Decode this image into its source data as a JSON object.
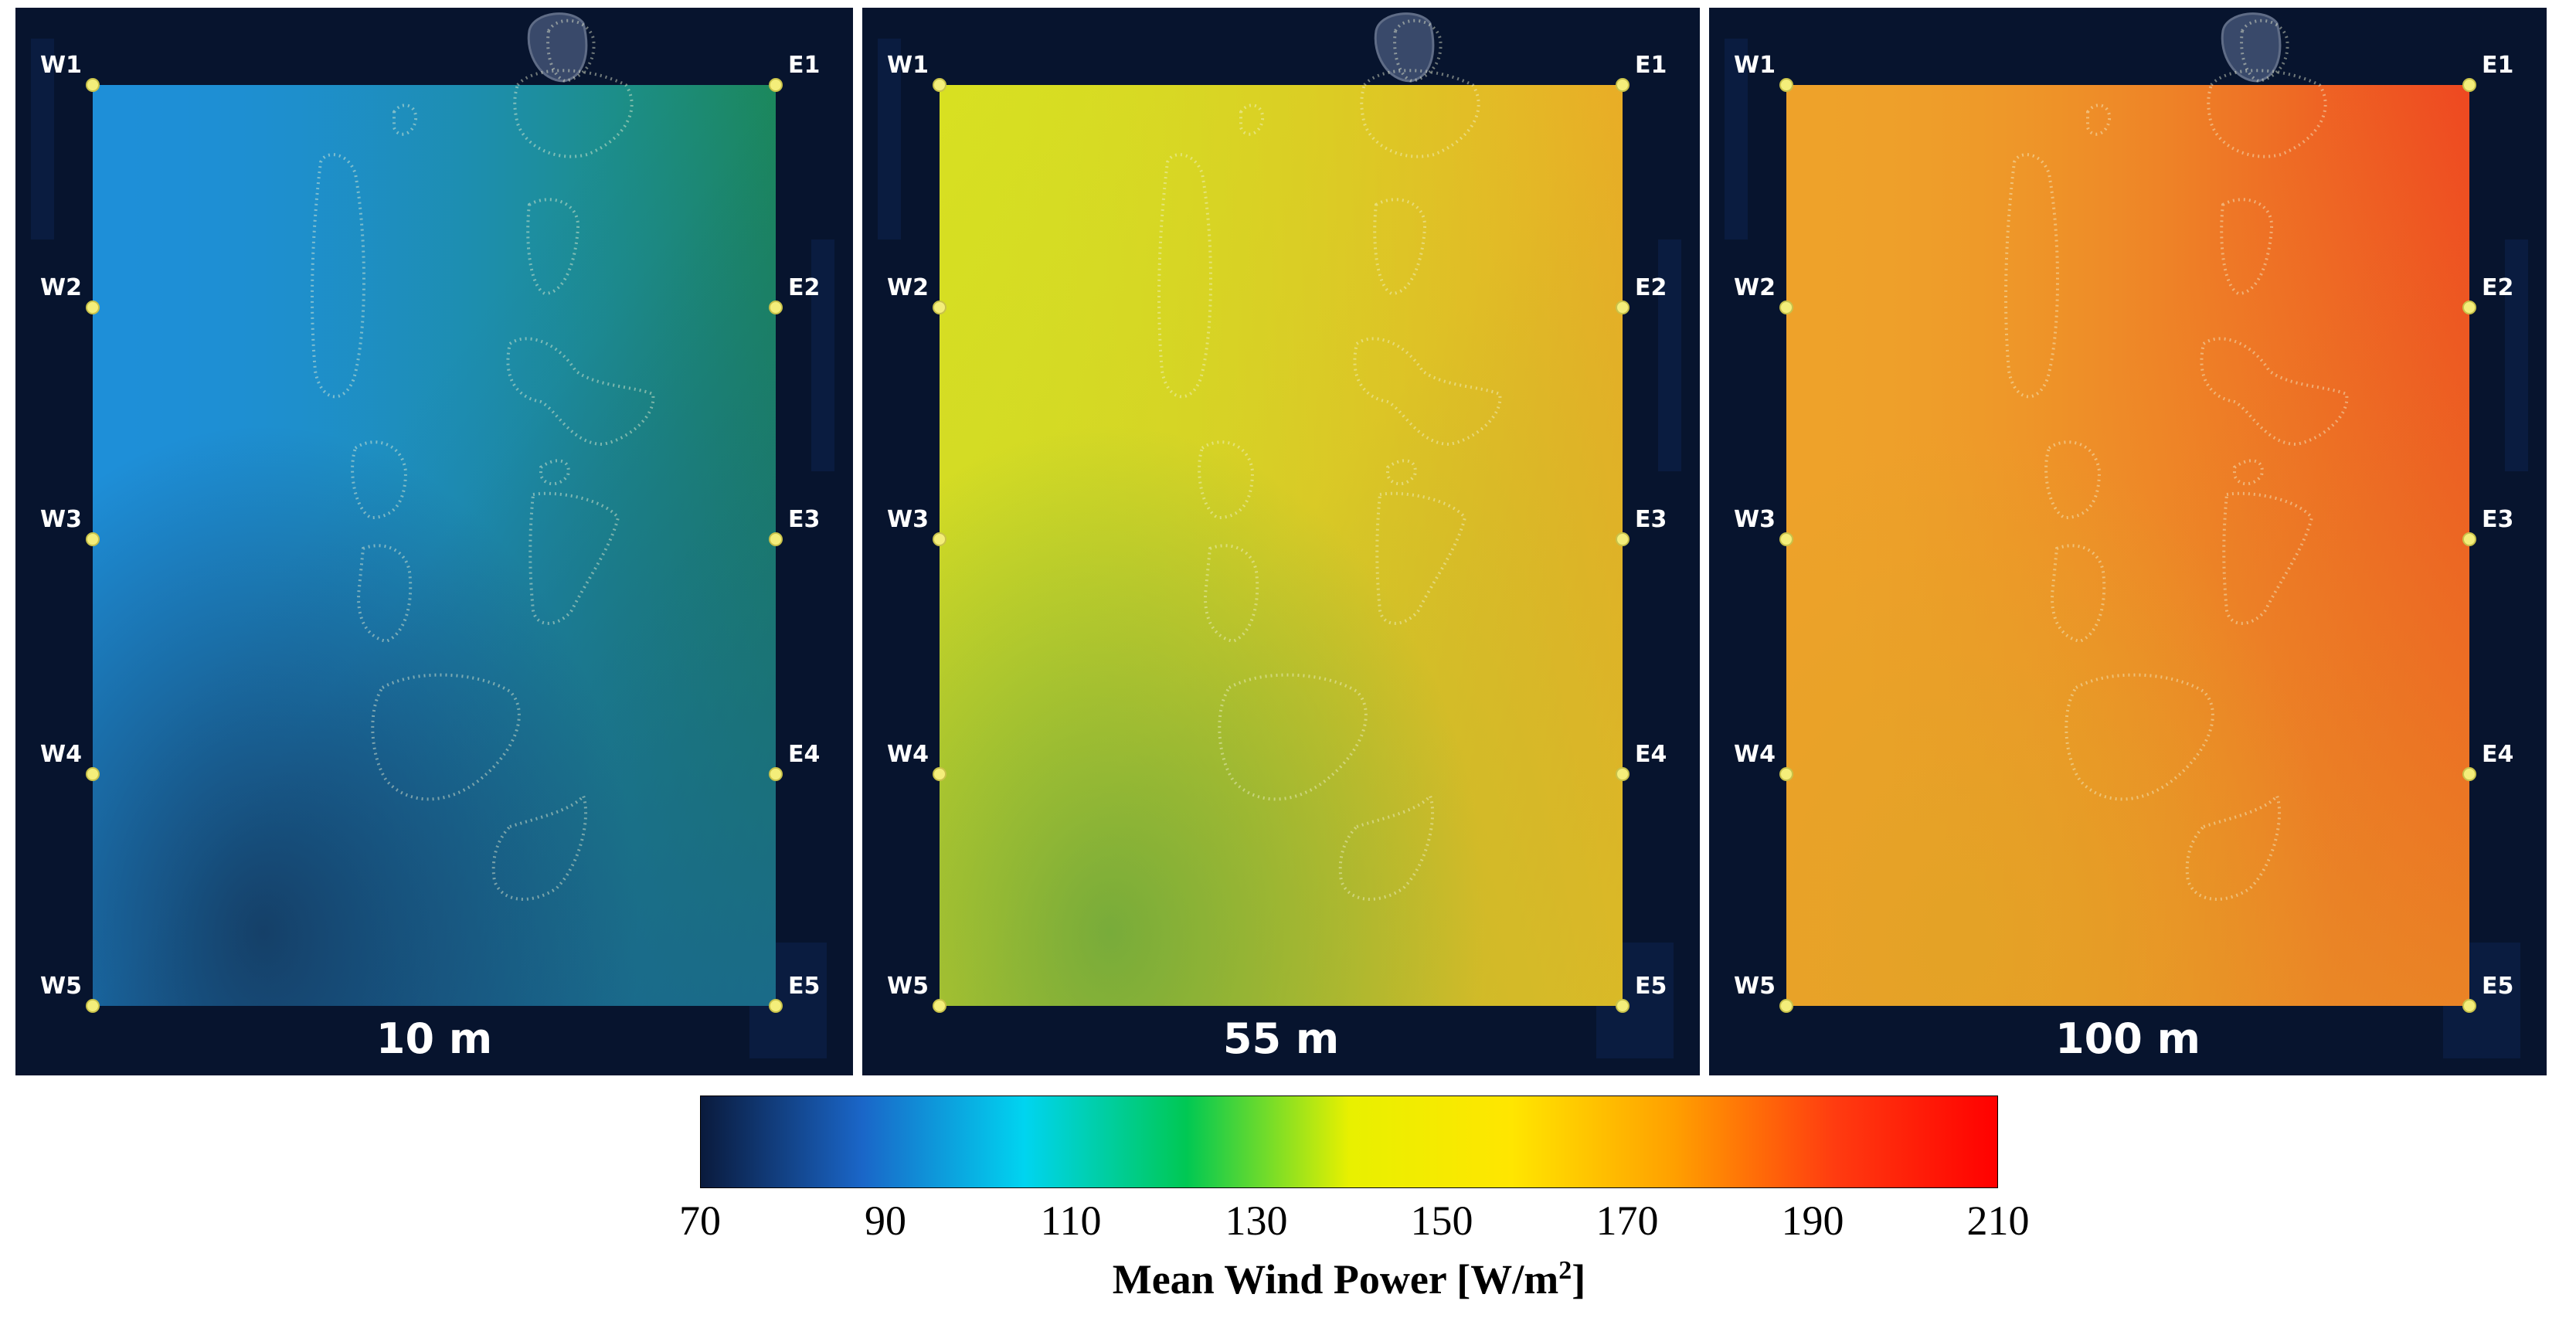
{
  "panels": [
    {
      "height_label": "10 m",
      "field": {
        "tl": "#1e8fd8",
        "tr": "#1b8c3a",
        "bl": "#14395f",
        "br": "#1a62a8",
        "mid": "#1e8fd8"
      }
    },
    {
      "height_label": "55 m",
      "field": {
        "tl": "#d8e021",
        "tr": "#f0a226",
        "bl": "#6fa83c",
        "br": "#d8c326",
        "mid": "#cfd628"
      }
    },
    {
      "height_label": "100 m",
      "field": {
        "tl": "#eea22a",
        "tr": "#ef2a1e",
        "bl": "#e3a326",
        "br": "#e9a228",
        "mid": "#eea22a"
      }
    }
  ],
  "west_points": [
    "W1",
    "W2",
    "W3",
    "W4",
    "W5"
  ],
  "east_points": [
    "E1",
    "E2",
    "E3",
    "E4",
    "E5"
  ],
  "colorbar": {
    "title": "Mean Wind Power [W/m",
    "title_sup": "2",
    "title_end": "]",
    "ticks": [
      "70",
      "90",
      "110",
      "130",
      "150",
      "170",
      "190",
      "210"
    ],
    "min": 70,
    "max": 210,
    "stops": [
      "#0a1a3c",
      "#1a66c8",
      "#00d4f0",
      "#00c853",
      "#e8f000",
      "#ffe600",
      "#ffa000",
      "#ff3b10",
      "#ff0000"
    ]
  }
}
